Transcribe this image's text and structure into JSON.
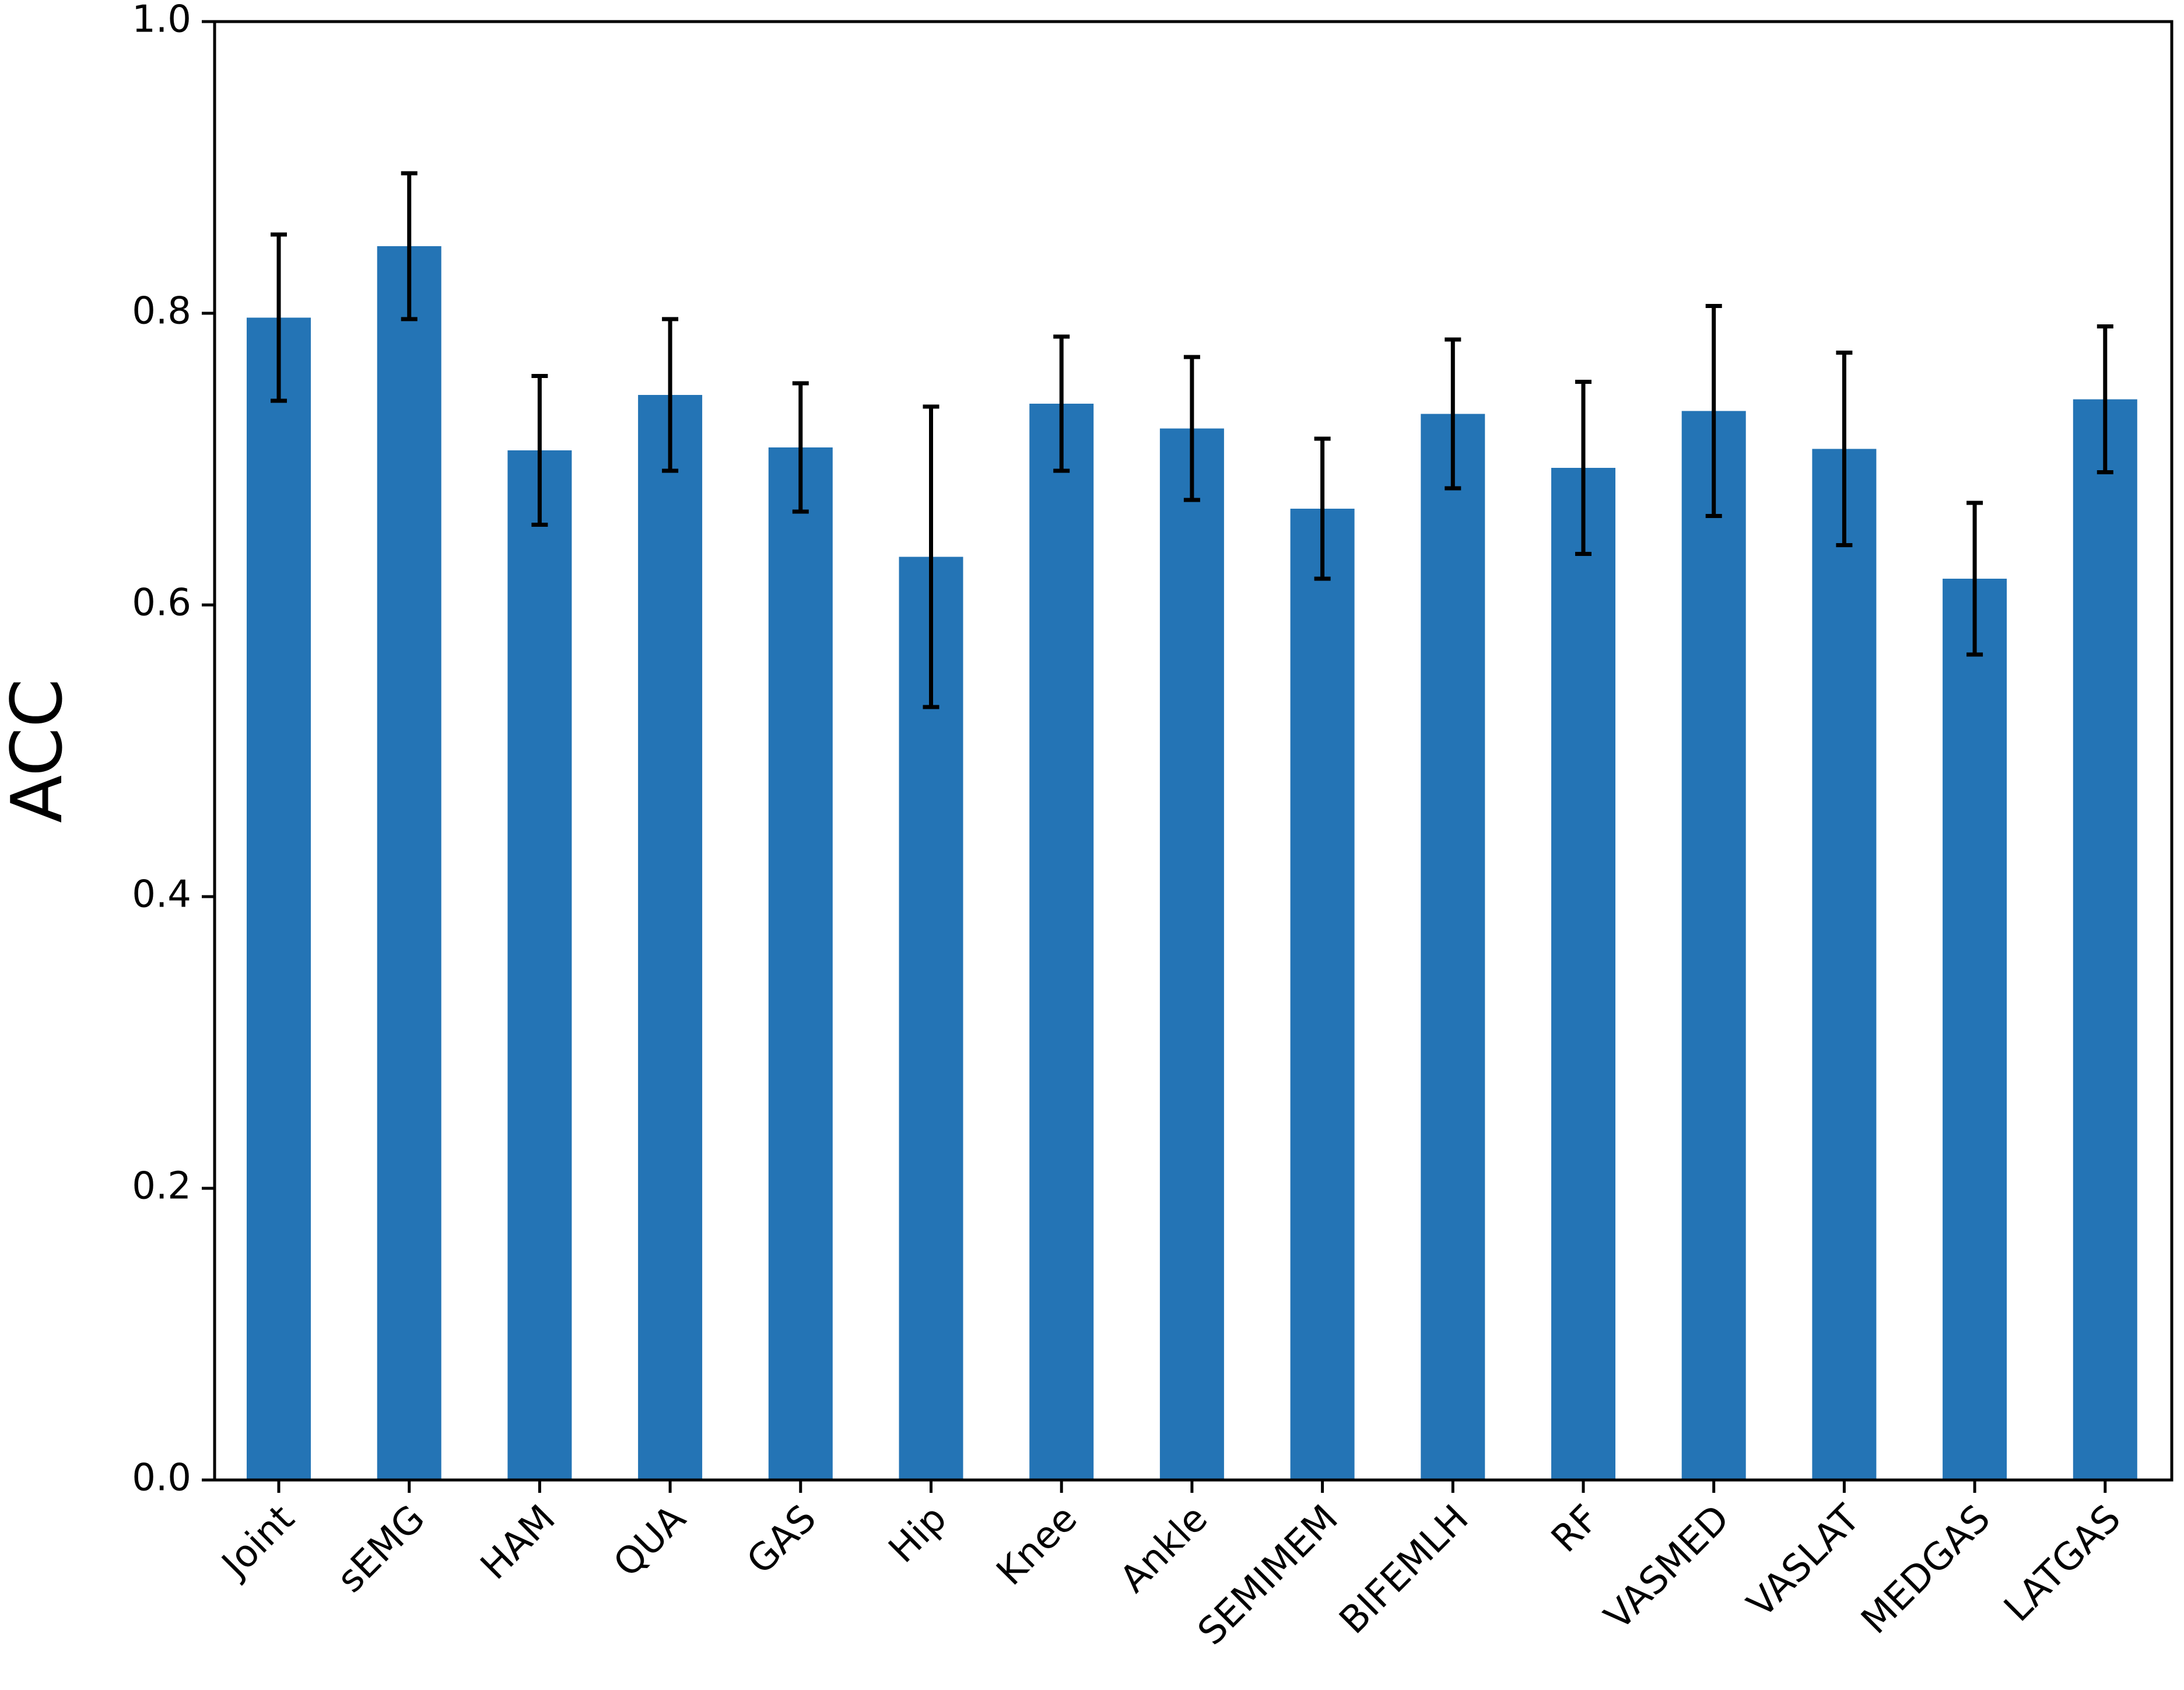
{
  "chart_data": {
    "type": "bar",
    "title": "",
    "xlabel": "",
    "ylabel": "ACC",
    "ylim": [
      0.0,
      1.0
    ],
    "yticks": [
      "0.0",
      "0.2",
      "0.4",
      "0.6",
      "0.8",
      "1.0"
    ],
    "grid": false,
    "legend": "none",
    "bar_color": "#2474b5",
    "error_color": "#000000",
    "categories": [
      "Joint",
      "sEMG",
      "HAM",
      "QUA",
      "GAS",
      "Hip",
      "Knee",
      "Ankle",
      "SEMIMEM",
      "BIFEMLH",
      "RF",
      "VASMED",
      "VASLAT",
      "MEDGAS",
      "LATGAS"
    ],
    "values": [
      0.797,
      0.846,
      0.706,
      0.744,
      0.708,
      0.633,
      0.738,
      0.721,
      0.666,
      0.731,
      0.694,
      0.733,
      0.707,
      0.618,
      0.741
    ],
    "errors": [
      0.057,
      0.05,
      0.051,
      0.052,
      0.044,
      0.103,
      0.046,
      0.049,
      0.048,
      0.051,
      0.059,
      0.072,
      0.066,
      0.052,
      0.05
    ]
  }
}
